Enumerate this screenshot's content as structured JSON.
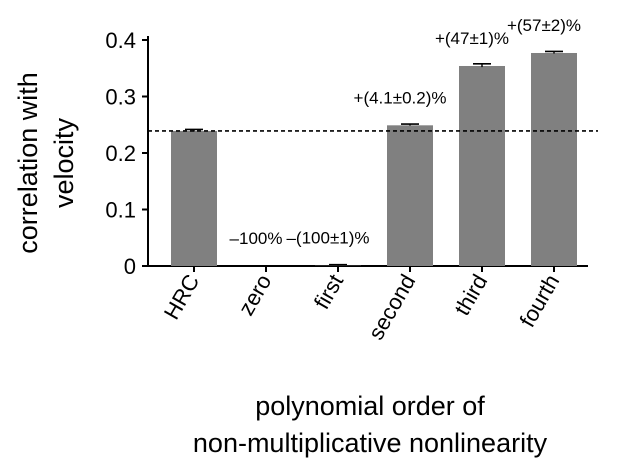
{
  "chart_data": {
    "type": "bar",
    "title": "",
    "xlabel": [
      "polynomial order of",
      "non-multiplicative nonlinearity"
    ],
    "ylabel": [
      "correlation with",
      "velocity"
    ],
    "ylim": [
      0,
      0.4
    ],
    "yticks": [
      "0",
      "0.1",
      "0.2",
      "0.3",
      "0.4"
    ],
    "ytick_values": [
      0,
      0.1,
      0.2,
      0.3,
      0.4
    ],
    "categories": [
      "HRC",
      "zero",
      "first",
      "second",
      "third",
      "fourth"
    ],
    "values": [
      0.239,
      0.0,
      0.0005,
      0.249,
      0.354,
      0.377
    ],
    "errors": [
      0.001,
      0.0,
      0.0,
      0.0004,
      0.002,
      0.001
    ],
    "annotations": [
      "",
      "–100%",
      "–(100±1)%",
      "+(4.1±0.2)%",
      "+(47±1)%",
      "+(57±2)%"
    ],
    "reference_line": {
      "value": 0.239,
      "style": "dashed"
    },
    "bar_color": "#808080",
    "grid": false,
    "legend": "none"
  }
}
